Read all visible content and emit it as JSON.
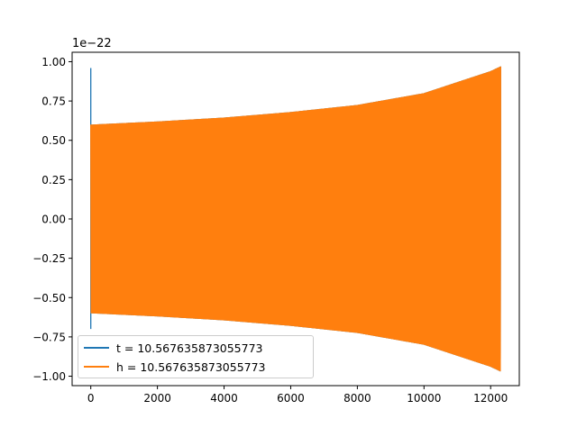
{
  "chart_data": {
    "type": "line",
    "title": "",
    "xlabel": "",
    "ylabel": "",
    "y_offset_label": "1e−22",
    "xlim": [
      -560,
      12860
    ],
    "ylim": [
      -1.06,
      1.06
    ],
    "xticks": [
      0,
      2000,
      4000,
      6000,
      8000,
      10000,
      12000
    ],
    "xtick_labels": [
      "0",
      "2000",
      "4000",
      "6000",
      "8000",
      "10000",
      "12000"
    ],
    "yticks": [
      -1.0,
      -0.75,
      -0.5,
      -0.25,
      0.0,
      0.25,
      0.5,
      0.75,
      1.0
    ],
    "ytick_labels": [
      "−1.00",
      "−0.75",
      "−0.50",
      "−0.25",
      "0.00",
      "0.25",
      "0.50",
      "0.75",
      "1.00"
    ],
    "grid": false,
    "legend_position": "lower-left",
    "series": [
      {
        "name": "t = 10.567635873055773",
        "color": "#1f77b4",
        "x_range": [
          0,
          12300
        ],
        "spike": {
          "x": 0,
          "max": 0.96,
          "min": -0.7
        },
        "envelope": {
          "x": [
            0,
            2000,
            4000,
            6000,
            8000,
            10000,
            12000,
            12300
          ],
          "amp": [
            0.6,
            0.62,
            0.645,
            0.68,
            0.725,
            0.8,
            0.94,
            0.97
          ]
        }
      },
      {
        "name": "h = 10.567635873055773",
        "color": "#ff7f0e",
        "x_range": [
          0,
          12300
        ],
        "envelope": {
          "x": [
            0,
            2000,
            4000,
            6000,
            8000,
            10000,
            12000,
            12300
          ],
          "amp": [
            0.6,
            0.62,
            0.645,
            0.68,
            0.725,
            0.8,
            0.94,
            0.97
          ]
        }
      }
    ]
  }
}
